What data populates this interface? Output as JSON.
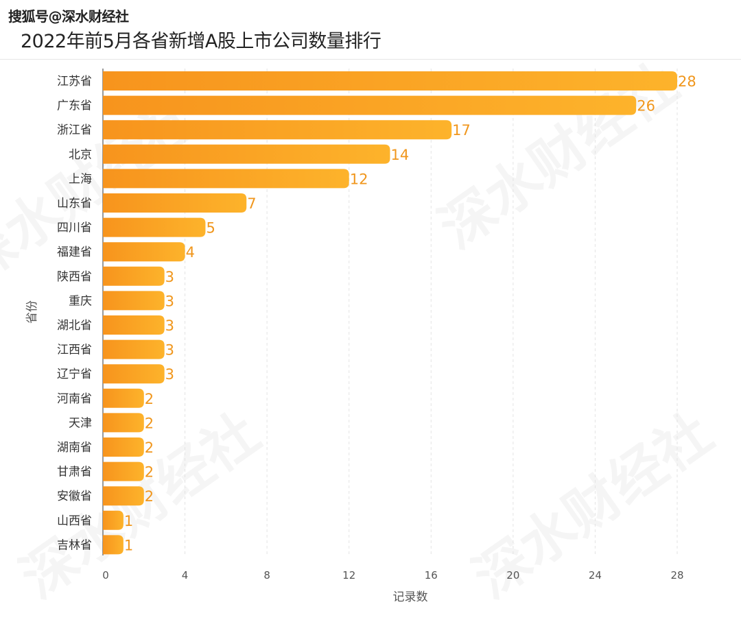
{
  "source": "搜狐号@深水财经社",
  "watermark": "深水财经社",
  "chart_data": {
    "type": "bar",
    "orientation": "horizontal",
    "title": "2022年前5月各省新增A股上市公司数量排行",
    "xlabel": "记录数",
    "ylabel": "省份",
    "xlim": [
      0,
      28
    ],
    "xticks": [
      0,
      4,
      8,
      12,
      16,
      20,
      24,
      28
    ],
    "grid": true,
    "categories": [
      "江苏省",
      "广东省",
      "浙江省",
      "北京",
      "上海",
      "山东省",
      "四川省",
      "福建省",
      "陕西省",
      "重庆",
      "湖北省",
      "江西省",
      "辽宁省",
      "河南省",
      "天津",
      "湖南省",
      "甘肃省",
      "安徽省",
      "山西省",
      "吉林省"
    ],
    "values": [
      28,
      26,
      17,
      14,
      12,
      7,
      5,
      4,
      3,
      3,
      3,
      3,
      3,
      2,
      2,
      2,
      2,
      2,
      1,
      1
    ],
    "colors": {
      "bar_start": "#f7941d",
      "bar_end": "#fdb32b",
      "label": "#f0961c"
    }
  }
}
